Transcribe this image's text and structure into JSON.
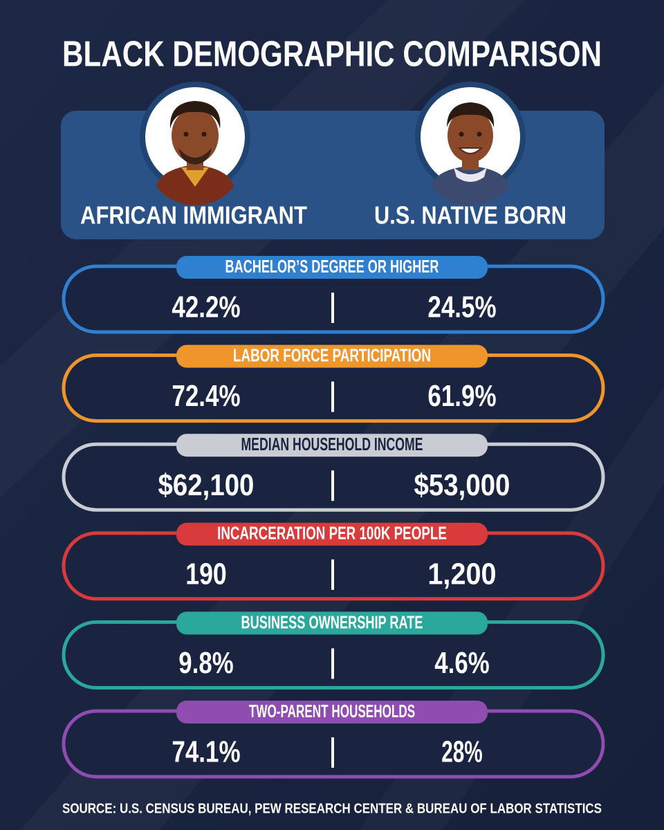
{
  "title": "BLACK DEMOGRAPHIC COMPARISON",
  "groups": [
    "AFRICAN IMMIGRANT",
    "U.S. NATIVE BORN"
  ],
  "metrics": [
    {
      "label": "BACHELOR’S DEGREE OR HIGHER",
      "values": [
        "42.2%",
        "24.5%"
      ],
      "color": "#2f80d1"
    },
    {
      "label": "LABOR FORCE PARTICIPATION",
      "values": [
        "72.4%",
        "61.9%"
      ],
      "color": "#f0952b"
    },
    {
      "label": "MEDIAN HOUSEHOLD INCOME",
      "values": [
        "$62,100",
        "$53,000"
      ],
      "color": "#c9ccd2"
    },
    {
      "label": "INCARCERATION PER 100K PEOPLE",
      "values": [
        "190",
        "1,200"
      ],
      "color": "#d93a3b"
    },
    {
      "label": "BUSINESS OWNERSHIP RATE",
      "values": [
        "9.8%",
        "4.6%"
      ],
      "color": "#2aa89c"
    },
    {
      "label": "TWO-PARENT HOUSEHOLDS",
      "values": [
        "74.1%",
        "28%"
      ],
      "color": "#8f4db2"
    }
  ],
  "source": "SOURCE: U.S. CENSUS BUREAU, PEW RESEARCH CENTER & BUREAU OF LABOR STATISTICS"
}
